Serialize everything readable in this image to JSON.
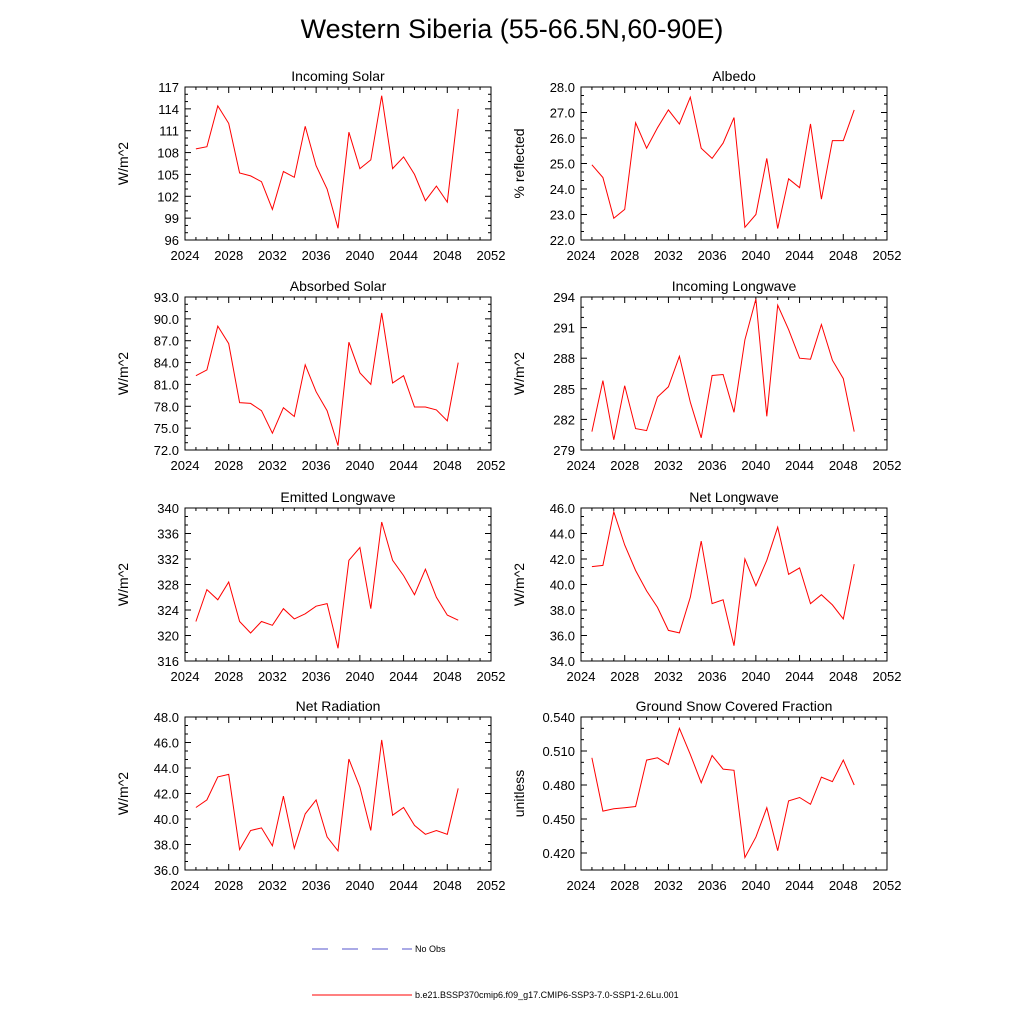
{
  "title": "Western Siberia (55-66.5N,60-90E)",
  "colors": {
    "model": "#ff0000",
    "obs": "#5555cc",
    "axis": "#000000"
  },
  "legend": [
    {
      "label": "No Obs",
      "style": "dashed",
      "color": "#5555cc"
    },
    {
      "label": "b.e21.BSSP370cmip6.f09_g17.CMIP6-SSP3-7.0-SSP1-2.6Lu.001",
      "style": "solid",
      "color": "#ff0000"
    }
  ],
  "chart_data": [
    {
      "type": "line",
      "title": "Incoming Solar",
      "ylabel": "W/m^2",
      "xlim": [
        2024,
        2052
      ],
      "ylim": [
        96,
        117
      ],
      "xticks": [
        2024,
        2028,
        2032,
        2036,
        2040,
        2044,
        2048,
        2052
      ],
      "yticks": [
        "96",
        "99",
        "102",
        "105",
        "108",
        "111",
        "114",
        "117"
      ],
      "x": [
        2025,
        2026,
        2027,
        2028,
        2029,
        2030,
        2031,
        2032,
        2033,
        2034,
        2035,
        2036,
        2037,
        2038,
        2039,
        2040,
        2041,
        2042,
        2043,
        2044,
        2045,
        2046,
        2047,
        2048,
        2049
      ],
      "series": [
        {
          "values": [
            108.5,
            108.8,
            114.4,
            112.0,
            105.2,
            104.8,
            104.0,
            100.2,
            105.4,
            104.6,
            111.6,
            106.2,
            103.0,
            97.6,
            110.8,
            105.8,
            107.0,
            115.8,
            105.8,
            107.4,
            105.0,
            101.4,
            103.4,
            101.2,
            114.0
          ]
        }
      ]
    },
    {
      "type": "line",
      "title": "Albedo",
      "ylabel": "% reflected",
      "xlim": [
        2024,
        2052
      ],
      "ylim": [
        22.0,
        28.0
      ],
      "xticks": [
        2024,
        2028,
        2032,
        2036,
        2040,
        2044,
        2048,
        2052
      ],
      "yticks": [
        "22.0",
        "23.0",
        "24.0",
        "25.0",
        "26.0",
        "27.0",
        "28.0"
      ],
      "x": [
        2025,
        2026,
        2027,
        2028,
        2029,
        2030,
        2031,
        2032,
        2033,
        2034,
        2035,
        2036,
        2037,
        2038,
        2039,
        2040,
        2041,
        2042,
        2043,
        2044,
        2045,
        2046,
        2047,
        2048,
        2049
      ],
      "series": [
        {
          "values": [
            24.95,
            24.45,
            22.85,
            23.2,
            26.6,
            25.6,
            26.4,
            27.1,
            26.55,
            27.6,
            25.6,
            25.2,
            25.8,
            26.8,
            22.5,
            23.0,
            25.2,
            22.45,
            24.4,
            24.05,
            26.55,
            23.6,
            25.9,
            25.9,
            27.1
          ]
        }
      ]
    },
    {
      "type": "line",
      "title": "Absorbed Solar",
      "ylabel": "W/m^2",
      "xlim": [
        2024,
        2052
      ],
      "ylim": [
        72.0,
        93.0
      ],
      "xticks": [
        2024,
        2028,
        2032,
        2036,
        2040,
        2044,
        2048,
        2052
      ],
      "yticks": [
        "72.0",
        "75.0",
        "78.0",
        "81.0",
        "84.0",
        "87.0",
        "90.0",
        "93.0"
      ],
      "x": [
        2025,
        2026,
        2027,
        2028,
        2029,
        2030,
        2031,
        2032,
        2033,
        2034,
        2035,
        2036,
        2037,
        2038,
        2039,
        2040,
        2041,
        2042,
        2043,
        2044,
        2045,
        2046,
        2047,
        2048,
        2049
      ],
      "series": [
        {
          "values": [
            82.2,
            83.0,
            89.0,
            86.6,
            78.5,
            78.4,
            77.4,
            74.3,
            77.8,
            76.6,
            83.7,
            80.0,
            77.4,
            72.6,
            86.8,
            82.6,
            81.0,
            90.8,
            81.2,
            82.2,
            77.9,
            77.9,
            77.5,
            76.0,
            84.0
          ]
        }
      ]
    },
    {
      "type": "line",
      "title": "Incoming Longwave",
      "ylabel": "W/m^2",
      "xlim": [
        2024,
        2052
      ],
      "ylim": [
        279,
        294
      ],
      "xticks": [
        2024,
        2028,
        2032,
        2036,
        2040,
        2044,
        2048,
        2052
      ],
      "yticks": [
        "279",
        "282",
        "285",
        "288",
        "291",
        "294"
      ],
      "x": [
        2025,
        2026,
        2027,
        2028,
        2029,
        2030,
        2031,
        2032,
        2033,
        2034,
        2035,
        2036,
        2037,
        2038,
        2039,
        2040,
        2041,
        2042,
        2043,
        2044,
        2045,
        2046,
        2047,
        2048,
        2049
      ],
      "series": [
        {
          "values": [
            280.8,
            285.8,
            280.0,
            285.3,
            281.1,
            280.9,
            284.2,
            285.2,
            288.2,
            283.7,
            280.2,
            286.3,
            286.4,
            282.7,
            289.8,
            293.8,
            282.3,
            293.2,
            290.8,
            288.0,
            287.9,
            291.3,
            287.8,
            286.0,
            280.8
          ]
        }
      ]
    },
    {
      "type": "line",
      "title": "Emitted Longwave",
      "ylabel": "W/m^2",
      "xlim": [
        2024,
        2052
      ],
      "ylim": [
        316,
        340
      ],
      "xticks": [
        2024,
        2028,
        2032,
        2036,
        2040,
        2044,
        2048,
        2052
      ],
      "yticks": [
        "316",
        "320",
        "324",
        "328",
        "332",
        "336",
        "340"
      ],
      "x": [
        2025,
        2026,
        2027,
        2028,
        2029,
        2030,
        2031,
        2032,
        2033,
        2034,
        2035,
        2036,
        2037,
        2038,
        2039,
        2040,
        2041,
        2042,
        2043,
        2044,
        2045,
        2046,
        2047,
        2048,
        2049
      ],
      "series": [
        {
          "values": [
            322.2,
            327.2,
            325.6,
            328.4,
            322.2,
            320.4,
            322.2,
            321.6,
            324.2,
            322.6,
            323.4,
            324.6,
            325.0,
            318.0,
            331.8,
            333.8,
            324.2,
            337.8,
            331.8,
            329.4,
            326.4,
            330.4,
            326.0,
            323.2,
            322.4
          ]
        }
      ]
    },
    {
      "type": "line",
      "title": "Net Longwave",
      "ylabel": "W/m^2",
      "xlim": [
        2024,
        2052
      ],
      "ylim": [
        34.0,
        46.0
      ],
      "xticks": [
        2024,
        2028,
        2032,
        2036,
        2040,
        2044,
        2048,
        2052
      ],
      "yticks": [
        "34.0",
        "36.0",
        "38.0",
        "40.0",
        "42.0",
        "44.0",
        "46.0"
      ],
      "x": [
        2025,
        2026,
        2027,
        2028,
        2029,
        2030,
        2031,
        2032,
        2033,
        2034,
        2035,
        2036,
        2037,
        2038,
        2039,
        2040,
        2041,
        2042,
        2043,
        2044,
        2045,
        2046,
        2047,
        2048,
        2049
      ],
      "series": [
        {
          "values": [
            41.4,
            41.5,
            45.7,
            43.1,
            41.1,
            39.5,
            38.2,
            36.4,
            36.2,
            39.0,
            43.4,
            38.5,
            38.8,
            35.2,
            42.0,
            39.9,
            41.9,
            44.5,
            40.8,
            41.3,
            38.5,
            39.2,
            38.4,
            37.3,
            41.6
          ]
        }
      ]
    },
    {
      "type": "line",
      "title": "Net Radiation",
      "ylabel": "W/m^2",
      "xlim": [
        2024,
        2052
      ],
      "ylim": [
        36.0,
        48.0
      ],
      "xticks": [
        2024,
        2028,
        2032,
        2036,
        2040,
        2044,
        2048,
        2052
      ],
      "yticks": [
        "36.0",
        "38.0",
        "40.0",
        "42.0",
        "44.0",
        "46.0",
        "48.0"
      ],
      "x": [
        2025,
        2026,
        2027,
        2028,
        2029,
        2030,
        2031,
        2032,
        2033,
        2034,
        2035,
        2036,
        2037,
        2038,
        2039,
        2040,
        2041,
        2042,
        2043,
        2044,
        2045,
        2046,
        2047,
        2048,
        2049
      ],
      "series": [
        {
          "values": [
            40.9,
            41.5,
            43.3,
            43.5,
            37.6,
            39.1,
            39.3,
            37.9,
            41.8,
            37.7,
            40.4,
            41.5,
            38.6,
            37.5,
            44.7,
            42.5,
            39.1,
            46.2,
            40.3,
            40.9,
            39.5,
            38.8,
            39.1,
            38.8,
            42.4
          ]
        }
      ]
    },
    {
      "type": "line",
      "title": "Ground Snow Covered Fraction",
      "ylabel": "unitless",
      "xlim": [
        2024,
        2052
      ],
      "ylim": [
        0.405,
        0.54
      ],
      "xticks": [
        2024,
        2028,
        2032,
        2036,
        2040,
        2044,
        2048,
        2052
      ],
      "yticks": [
        "0.420",
        "0.450",
        "0.480",
        "0.510",
        "0.540"
      ],
      "x": [
        2025,
        2026,
        2027,
        2028,
        2029,
        2030,
        2031,
        2032,
        2033,
        2034,
        2035,
        2036,
        2037,
        2038,
        2039,
        2040,
        2041,
        2042,
        2043,
        2044,
        2045,
        2046,
        2047,
        2048,
        2049
      ],
      "series": [
        {
          "values": [
            0.504,
            0.457,
            0.459,
            0.46,
            0.461,
            0.502,
            0.504,
            0.498,
            0.53,
            0.507,
            0.482,
            0.506,
            0.494,
            0.493,
            0.416,
            0.434,
            0.46,
            0.422,
            0.466,
            0.469,
            0.463,
            0.487,
            0.483,
            0.502,
            0.48
          ]
        }
      ]
    }
  ]
}
